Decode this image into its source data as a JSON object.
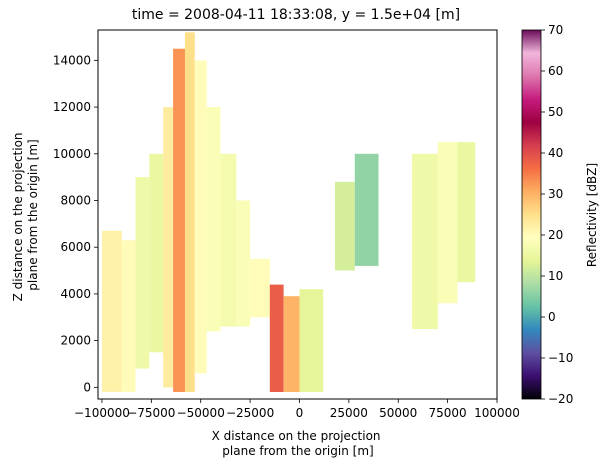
{
  "chart_data": {
    "type": "heatmap",
    "title": "time = 2008-04-11 18:33:08, y = 1.5e+04 [m]",
    "xlabel": [
      "X distance on the projection",
      "plane from the origin [m]"
    ],
    "ylabel": [
      "Z distance on the projection",
      "plane from the origin [m]"
    ],
    "xlim": [
      -102000,
      100000
    ],
    "ylim": [
      -500,
      15300
    ],
    "x_ticks": [
      -100000,
      -75000,
      -50000,
      -25000,
      0,
      25000,
      50000,
      75000,
      100000
    ],
    "x_tick_labels": [
      "−100000",
      "−75000",
      "−50000",
      "−25000",
      "0",
      "25000",
      "50000",
      "75000",
      "100000"
    ],
    "y_ticks": [
      0,
      2000,
      4000,
      6000,
      8000,
      10000,
      12000,
      14000
    ],
    "y_tick_labels": [
      "0",
      "2000",
      "4000",
      "6000",
      "8000",
      "10000",
      "12000",
      "14000"
    ],
    "colorbar": {
      "label": "Reflectivity [dBZ]",
      "range": [
        -20,
        70
      ],
      "ticks": [
        -20,
        -10,
        0,
        10,
        20,
        30,
        40,
        50,
        60,
        70
      ],
      "tick_labels": [
        "−20",
        "−10",
        "0",
        "10",
        "20",
        "30",
        "40",
        "50",
        "60",
        "70"
      ],
      "colormap": "Spectral_r",
      "colormap_colors": [
        "#000004",
        "#3b0f70",
        "#5e4fa2",
        "#3288bd",
        "#66c2a5",
        "#abdda4",
        "#e6f598",
        "#ffffbf",
        "#fee08b",
        "#fdae61",
        "#f46d43",
        "#d53e4f",
        "#9e0142",
        "#c51b7d",
        "#de77ae",
        "#f1b6da",
        "#6a0c5a"
      ]
    },
    "cells": [
      {
        "x0": -100000,
        "x1": -90000,
        "z0": -200,
        "z1": 6700,
        "value": 22
      },
      {
        "x0": -90000,
        "x1": -83000,
        "z0": -200,
        "z1": 6300,
        "value": 20
      },
      {
        "x0": -83000,
        "x1": -76000,
        "z0": 800,
        "z1": 9000,
        "value": 16
      },
      {
        "x0": -76000,
        "x1": -69000,
        "z0": 1500,
        "z1": 10000,
        "value": 15
      },
      {
        "x0": -69000,
        "x1": -64000,
        "z0": 0,
        "z1": 12000,
        "value": 23
      },
      {
        "x0": -64000,
        "x1": -58000,
        "z0": -200,
        "z1": 14500,
        "value": 33
      },
      {
        "x0": -58000,
        "x1": -53000,
        "z0": -200,
        "z1": 15200,
        "value": 25
      },
      {
        "x0": -53000,
        "x1": -47000,
        "z0": 600,
        "z1": 14000,
        "value": 20
      },
      {
        "x0": -47000,
        "x1": -40000,
        "z0": 2400,
        "z1": 12000,
        "value": 18
      },
      {
        "x0": -40000,
        "x1": -32000,
        "z0": 2600,
        "z1": 10000,
        "value": 17
      },
      {
        "x0": -32000,
        "x1": -25000,
        "z0": 2600,
        "z1": 8000,
        "value": 18
      },
      {
        "x0": -25000,
        "x1": -15000,
        "z0": 3000,
        "z1": 5500,
        "value": 20
      },
      {
        "x0": -15000,
        "x1": -8000,
        "z0": -200,
        "z1": 4400,
        "value": 38
      },
      {
        "x0": -8000,
        "x1": 0,
        "z0": -200,
        "z1": 3900,
        "value": 30
      },
      {
        "x0": 0,
        "x1": 12000,
        "z0": -200,
        "z1": 4200,
        "value": 14
      },
      {
        "x0": 18000,
        "x1": 28000,
        "z0": 5000,
        "z1": 8800,
        "value": 12
      },
      {
        "x0": 28000,
        "x1": 40000,
        "z0": 5200,
        "z1": 10000,
        "value": 6
      },
      {
        "x0": 57000,
        "x1": 70000,
        "z0": 2500,
        "z1": 10000,
        "value": 16
      },
      {
        "x0": 70000,
        "x1": 80000,
        "z0": 3600,
        "z1": 10500,
        "value": 18
      },
      {
        "x0": 80000,
        "x1": 89000,
        "z0": 4500,
        "z1": 10500,
        "value": 15
      }
    ]
  }
}
